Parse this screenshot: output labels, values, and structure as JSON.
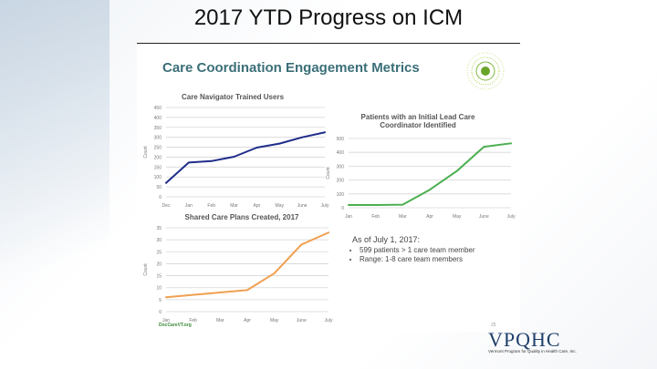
{
  "page_title": "2017 YTD Progress on ICM",
  "slide": {
    "title": "Care Coordination Engagement Metrics",
    "footer": "DocCareVT.org",
    "page_number": "25"
  },
  "brand": {
    "name": "VPQHC",
    "tagline": "Vermont Program for Quality in Health Care, Inc.",
    "color": "#1f3f6b"
  },
  "notes": {
    "heading": "As of July 1, 2017:",
    "bullets": [
      "599 patients > 1 care team member",
      "Range: 1-8 care team members"
    ]
  },
  "chart_data": [
    {
      "type": "line",
      "title": "Care Navigator Trained Users",
      "ylabel": "Count",
      "xlabel": "",
      "categories": [
        "Dec",
        "Jan",
        "Feb",
        "Mar",
        "Apr",
        "May",
        "June",
        "July"
      ],
      "values": [
        70,
        173,
        180,
        202,
        248,
        268,
        300,
        325
      ],
      "ylim": [
        0,
        450
      ],
      "yticks": [
        0,
        50,
        100,
        150,
        200,
        250,
        300,
        350,
        400,
        450
      ],
      "grid": true,
      "color": "#1f2d8a"
    },
    {
      "type": "line",
      "title": "Patients with an Initial Lead Care Coordinator Identified",
      "ylabel": "Count",
      "xlabel": "",
      "categories": [
        "Jan",
        "Feb",
        "Mar",
        "Apr",
        "May",
        "June",
        "July"
      ],
      "values": [
        20,
        20,
        22,
        130,
        265,
        440,
        465
      ],
      "ylim": [
        0,
        500
      ],
      "yticks": [
        0,
        100,
        200,
        300,
        400,
        500
      ],
      "grid": true,
      "color": "#4caf50"
    },
    {
      "type": "line",
      "title": "Shared Care Plans Created, 2017",
      "ylabel": "Count",
      "xlabel": "",
      "categories": [
        "Jan",
        "Feb",
        "Mar",
        "Apr",
        "May",
        "June",
        "July"
      ],
      "values": [
        6,
        7,
        8,
        9,
        16,
        28,
        33
      ],
      "ylim": [
        0,
        35
      ],
      "yticks": [
        0,
        5,
        10,
        15,
        20,
        25,
        30,
        35
      ],
      "grid": true,
      "color": "#f0a050"
    }
  ]
}
